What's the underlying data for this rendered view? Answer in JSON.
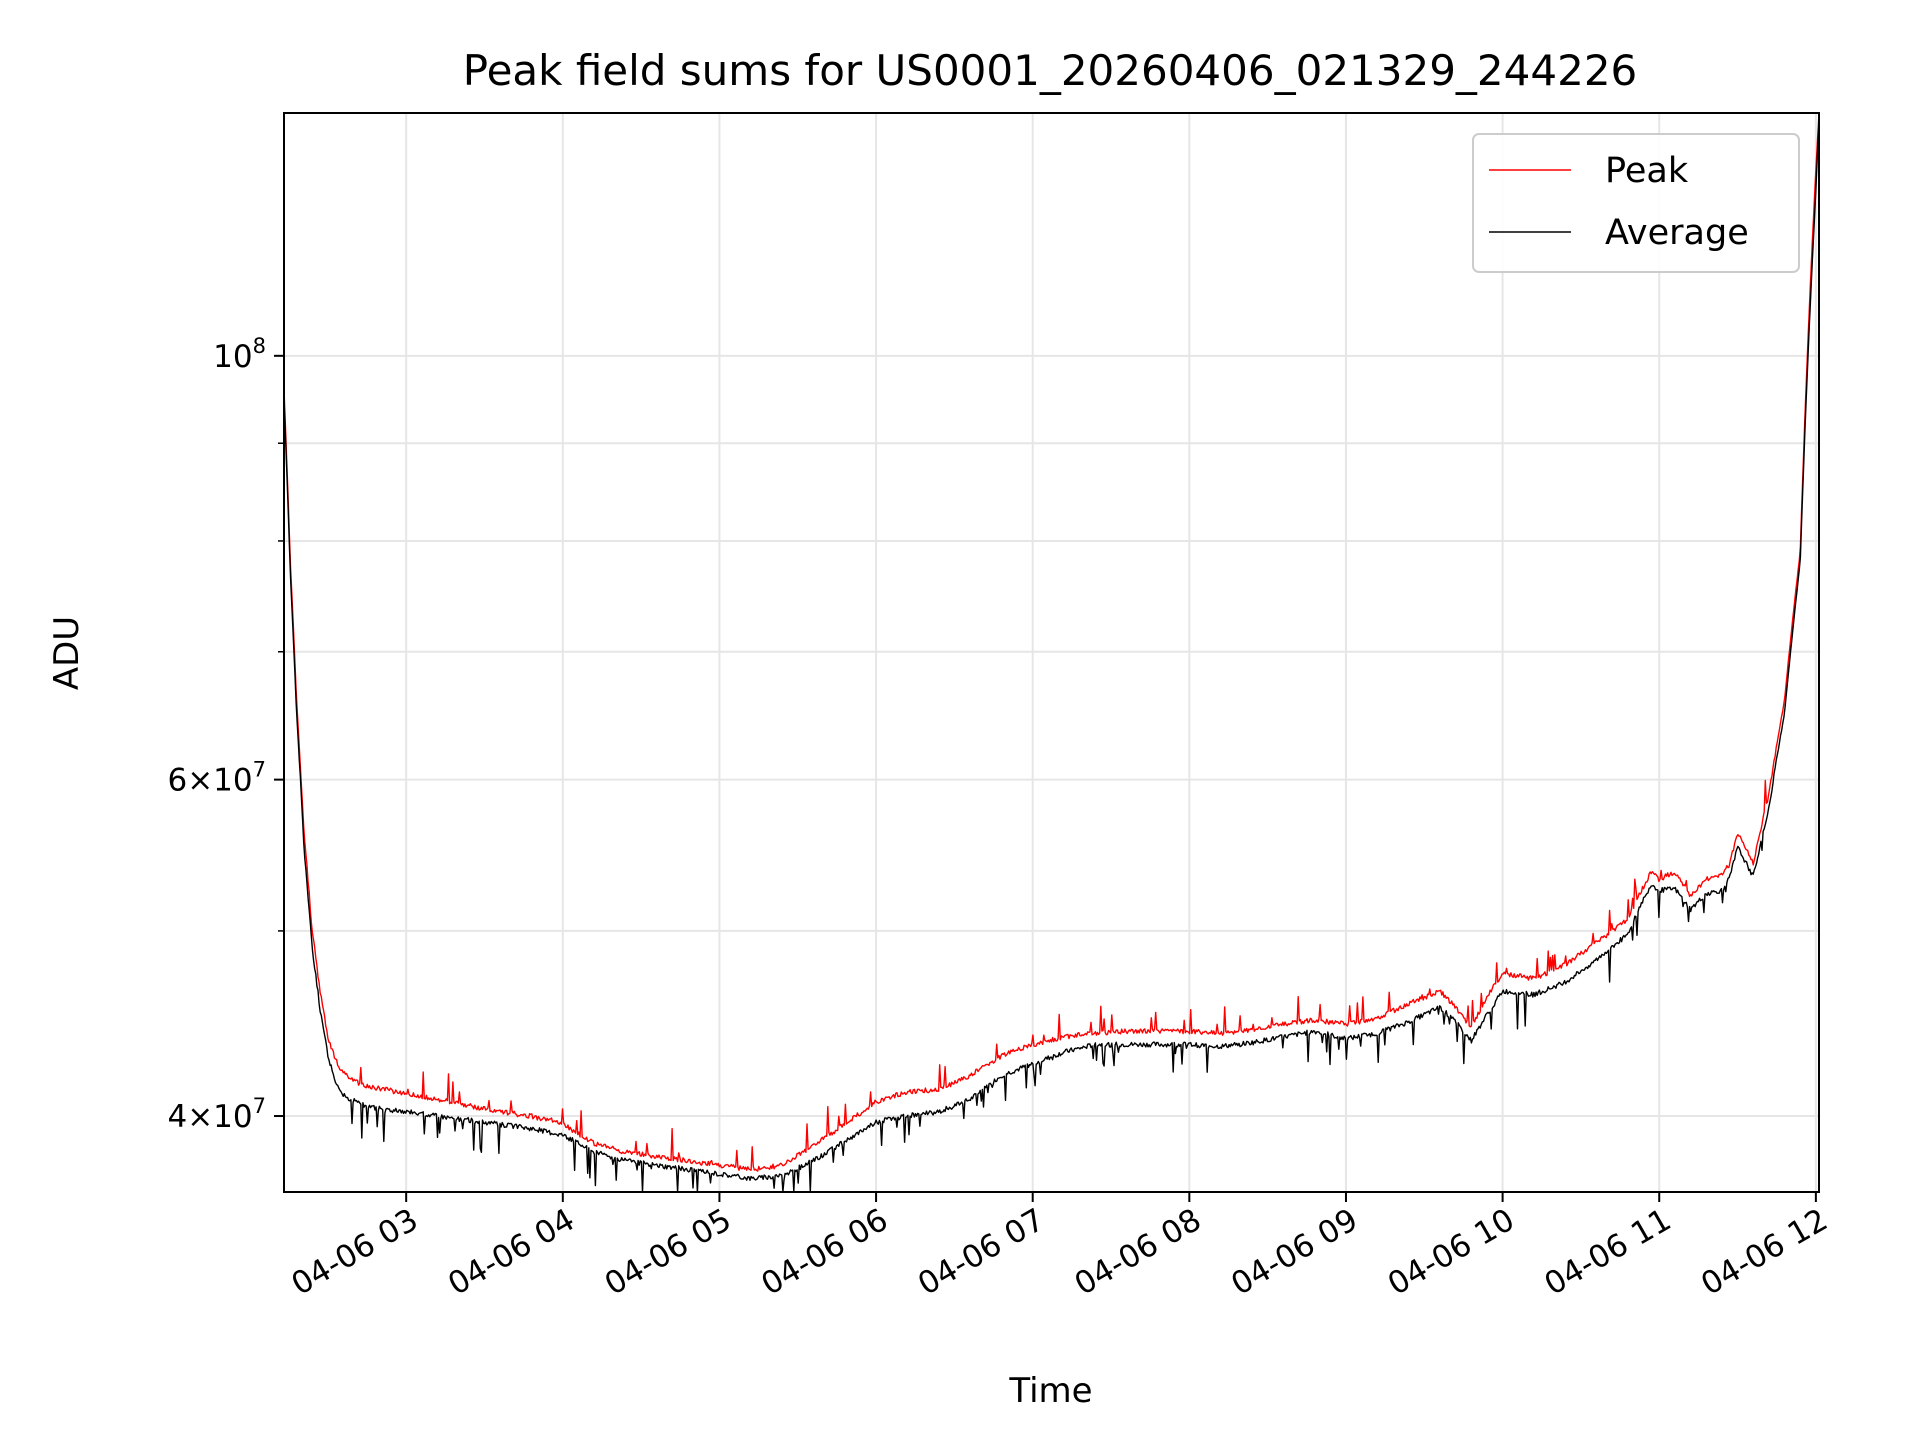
{
  "chart_data": {
    "type": "line",
    "title": "Peak field sums for US0001_20260406_021329_244226",
    "xlabel": "Time",
    "ylabel": "ADU",
    "yscale": "log",
    "xlim": [
      2.22,
      12.02
    ],
    "ylim": [
      36500000,
      134000000
    ],
    "grid": true,
    "legend_position": "top-right",
    "x_ticks": [
      {
        "value": 3,
        "label": "04-06 03"
      },
      {
        "value": 4,
        "label": "04-06 04"
      },
      {
        "value": 5,
        "label": "04-06 05"
      },
      {
        "value": 6,
        "label": "04-06 06"
      },
      {
        "value": 7,
        "label": "04-06 07"
      },
      {
        "value": 8,
        "label": "04-06 08"
      },
      {
        "value": 9,
        "label": "04-06 09"
      },
      {
        "value": 10,
        "label": "04-06 10"
      },
      {
        "value": 11,
        "label": "04-06 11"
      },
      {
        "value": 12,
        "label": "04-06 12"
      }
    ],
    "y_major_ticks": [
      {
        "value": 40000000,
        "base": "4×10",
        "exp": "7"
      },
      {
        "value": 60000000,
        "base": "6×10",
        "exp": "7"
      },
      {
        "value": 100000000,
        "base": "10",
        "exp": "8"
      }
    ],
    "y_minor_ticks": [
      50000000,
      70000000,
      80000000,
      90000000
    ],
    "series": [
      {
        "name": "Peak",
        "color": "#ff0000",
        "x": [
          2.22,
          2.26,
          2.3,
          2.35,
          2.4,
          2.45,
          2.5,
          2.55,
          2.6,
          2.7,
          2.8,
          3.0,
          3.2,
          3.4,
          3.6,
          3.8,
          4.0,
          4.2,
          4.4,
          4.6,
          4.8,
          5.0,
          5.2,
          5.4,
          5.6,
          5.8,
          6.0,
          6.2,
          6.4,
          6.6,
          6.8,
          7.0,
          7.2,
          7.4,
          7.6,
          7.8,
          8.0,
          8.2,
          8.4,
          8.6,
          8.8,
          9.0,
          9.2,
          9.4,
          9.6,
          9.7,
          9.8,
          9.9,
          10.0,
          10.2,
          10.4,
          10.6,
          10.8,
          10.85,
          10.95,
          11.0,
          11.1,
          11.2,
          11.3,
          11.4,
          11.45,
          11.5,
          11.6,
          11.7,
          11.8,
          11.9,
          12.0,
          12.02
        ],
        "values": [
          96000000,
          78000000,
          66000000,
          56000000,
          50000000,
          46500000,
          44000000,
          42800000,
          42100000,
          41600000,
          41400000,
          41100000,
          40800000,
          40500000,
          40200000,
          40000000,
          39600000,
          38700000,
          38300000,
          38100000,
          37900000,
          37700000,
          37500000,
          37700000,
          38600000,
          39600000,
          40700000,
          41200000,
          41300000,
          42000000,
          43000000,
          43600000,
          44000000,
          44200000,
          44300000,
          44300000,
          44300000,
          44200000,
          44400000,
          44700000,
          44900000,
          44700000,
          45000000,
          45800000,
          46500000,
          45600000,
          44500000,
          46200000,
          47500000,
          47200000,
          48000000,
          49300000,
          50700000,
          51800000,
          53700000,
          53200000,
          53700000,
          52100000,
          53200000,
          53500000,
          54200000,
          56300000,
          54200000,
          59000000,
          66000000,
          79000000,
          125000000,
          134000000
        ]
      },
      {
        "name": "Average",
        "color": "#000000",
        "x": [
          2.22,
          2.26,
          2.3,
          2.35,
          2.4,
          2.45,
          2.5,
          2.55,
          2.6,
          2.7,
          2.8,
          3.0,
          3.2,
          3.4,
          3.6,
          3.8,
          4.0,
          4.2,
          4.4,
          4.6,
          4.8,
          5.0,
          5.2,
          5.4,
          5.6,
          5.8,
          6.0,
          6.2,
          6.4,
          6.6,
          6.8,
          7.0,
          7.2,
          7.4,
          7.6,
          7.8,
          8.0,
          8.2,
          8.4,
          8.6,
          8.8,
          9.0,
          9.2,
          9.4,
          9.6,
          9.7,
          9.8,
          9.9,
          10.0,
          10.2,
          10.4,
          10.6,
          10.8,
          10.85,
          10.95,
          11.0,
          11.1,
          11.2,
          11.3,
          11.4,
          11.45,
          11.5,
          11.6,
          11.7,
          11.8,
          11.9,
          12.0,
          12.02
        ],
        "values": [
          95000000,
          77000000,
          65000000,
          55000000,
          49000000,
          45500000,
          43000000,
          41700000,
          41000000,
          40600000,
          40400000,
          40200000,
          40000000,
          39800000,
          39600000,
          39400000,
          39100000,
          38300000,
          37900000,
          37700000,
          37500000,
          37300000,
          37100000,
          37200000,
          37900000,
          38800000,
          39700000,
          40000000,
          40200000,
          40800000,
          42000000,
          42600000,
          43200000,
          43600000,
          43600000,
          43600000,
          43600000,
          43500000,
          43700000,
          44000000,
          44300000,
          43900000,
          44200000,
          44800000,
          45600000,
          44800000,
          43800000,
          45200000,
          46500000,
          46300000,
          47000000,
          48300000,
          49800000,
          51000000,
          52900000,
          52500000,
          52600000,
          51300000,
          52300000,
          52500000,
          53300000,
          55300000,
          53400000,
          58000000,
          65000000,
          78000000,
          122000000,
          133000000
        ]
      }
    ]
  }
}
